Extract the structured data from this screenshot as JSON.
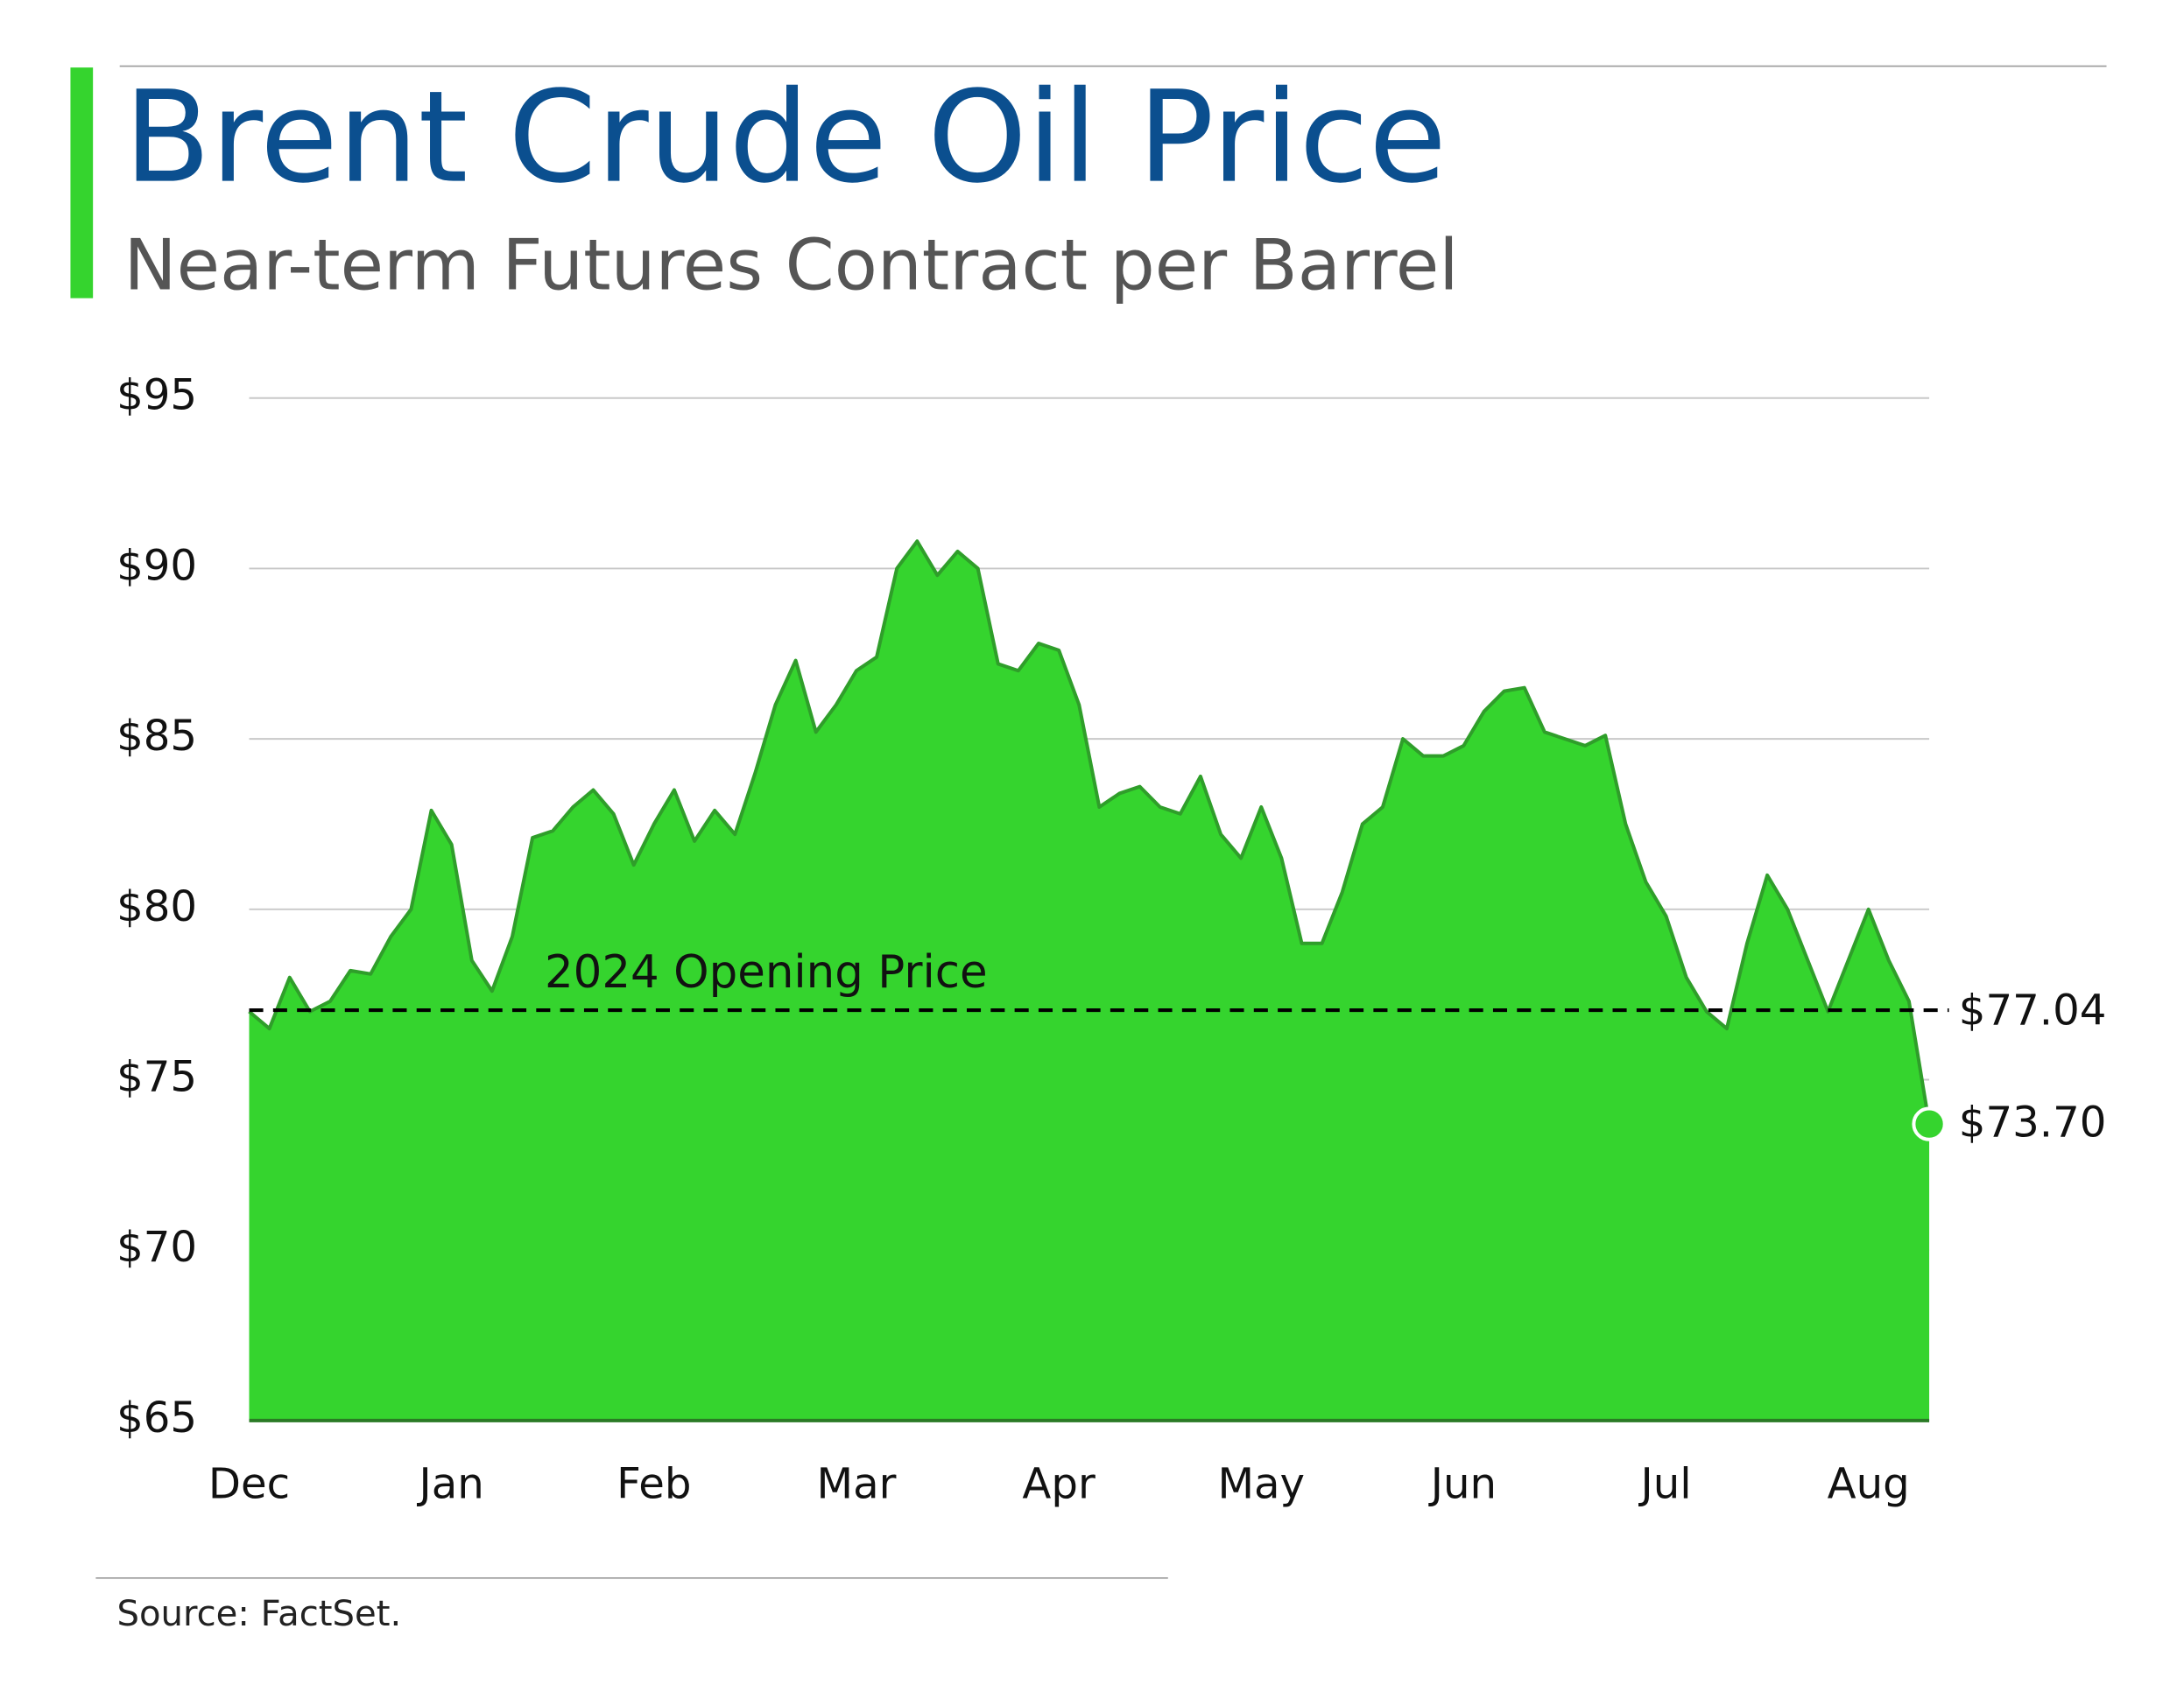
{
  "chart_data": {
    "type": "area",
    "title": "Brent Crude Oil Price",
    "subtitle": "Near-term Futures Contract per Barrel",
    "source": "Source: FactSet.",
    "color": "#35d42e",
    "line_color": "#2f9e2a",
    "categories": [
      "Dec",
      null,
      null,
      null,
      null,
      null,
      null,
      null,
      null,
      null,
      "Jan",
      null,
      null,
      null,
      null,
      null,
      null,
      null,
      null,
      null,
      "Feb",
      null,
      null,
      null,
      null,
      null,
      null,
      null,
      null,
      null,
      "Mar",
      null,
      null,
      null,
      null,
      null,
      null,
      null,
      null,
      null,
      "Apr",
      null,
      null,
      null,
      null,
      null,
      null,
      null,
      null,
      null,
      "May",
      null,
      null,
      null,
      null,
      null,
      null,
      null,
      null,
      null,
      "Jun",
      null,
      null,
      null,
      null,
      null,
      null,
      null,
      null,
      null,
      "Jul",
      null,
      null,
      null,
      null,
      null,
      null,
      null,
      null,
      null,
      "Aug",
      null,
      null,
      null
    ],
    "values": [
      77.0,
      76.5,
      78.0,
      77.0,
      77.3,
      78.2,
      78.1,
      79.2,
      80.0,
      82.9,
      81.9,
      78.5,
      77.6,
      79.2,
      82.1,
      82.3,
      83.0,
      83.5,
      82.8,
      81.3,
      82.5,
      83.5,
      82.0,
      82.9,
      82.2,
      84.0,
      86.0,
      87.3,
      85.2,
      86.0,
      87.0,
      87.4,
      90.0,
      90.8,
      89.8,
      90.5,
      90.0,
      87.2,
      87.0,
      87.8,
      87.6,
      86.0,
      83.0,
      83.4,
      83.6,
      83.0,
      82.8,
      83.9,
      82.2,
      81.5,
      83.0,
      81.5,
      79.0,
      79.0,
      80.5,
      82.5,
      83.0,
      85.0,
      84.5,
      84.5,
      84.8,
      85.8,
      86.4,
      86.5,
      85.2,
      85.0,
      84.8,
      85.1,
      82.5,
      80.8,
      79.8,
      78.0,
      77.0,
      76.5,
      79.0,
      81.0,
      80.0,
      78.5,
      77.0,
      78.5,
      80.0,
      78.5,
      77.3,
      73.7
    ],
    "value_labels": [
      null,
      null,
      null,
      null,
      null,
      null,
      null,
      null,
      null,
      null,
      null,
      null,
      null,
      null,
      null,
      null,
      null,
      null,
      null,
      null,
      null,
      null,
      null,
      null,
      null,
      null,
      null,
      null,
      null,
      null,
      null,
      null,
      null,
      null,
      null,
      null,
      null,
      null,
      null,
      null,
      null,
      null,
      null,
      null,
      null,
      null,
      null,
      null,
      null,
      null,
      null,
      null,
      null,
      null,
      null,
      null,
      null,
      null,
      null,
      null,
      null,
      null,
      null,
      null,
      null,
      null,
      null,
      null,
      null,
      null,
      null,
      null,
      null,
      null,
      null,
      null,
      null,
      null,
      null,
      null,
      null,
      null,
      null,
      "$73.70"
    ],
    "reference_line": {
      "value": 77.04,
      "label": "$77.04",
      "text": "2024 Opening Price"
    },
    "ylim": [
      65,
      95
    ],
    "yticks": [
      {
        "value": 65,
        "label": "$65"
      },
      {
        "value": 70,
        "label": "$70"
      },
      {
        "value": 75,
        "label": "$75"
      },
      {
        "value": 80,
        "label": "$80"
      },
      {
        "value": 85,
        "label": "$85"
      },
      {
        "value": 90,
        "label": "$90"
      },
      {
        "value": 95,
        "label": "$95"
      }
    ],
    "grid": true
  }
}
